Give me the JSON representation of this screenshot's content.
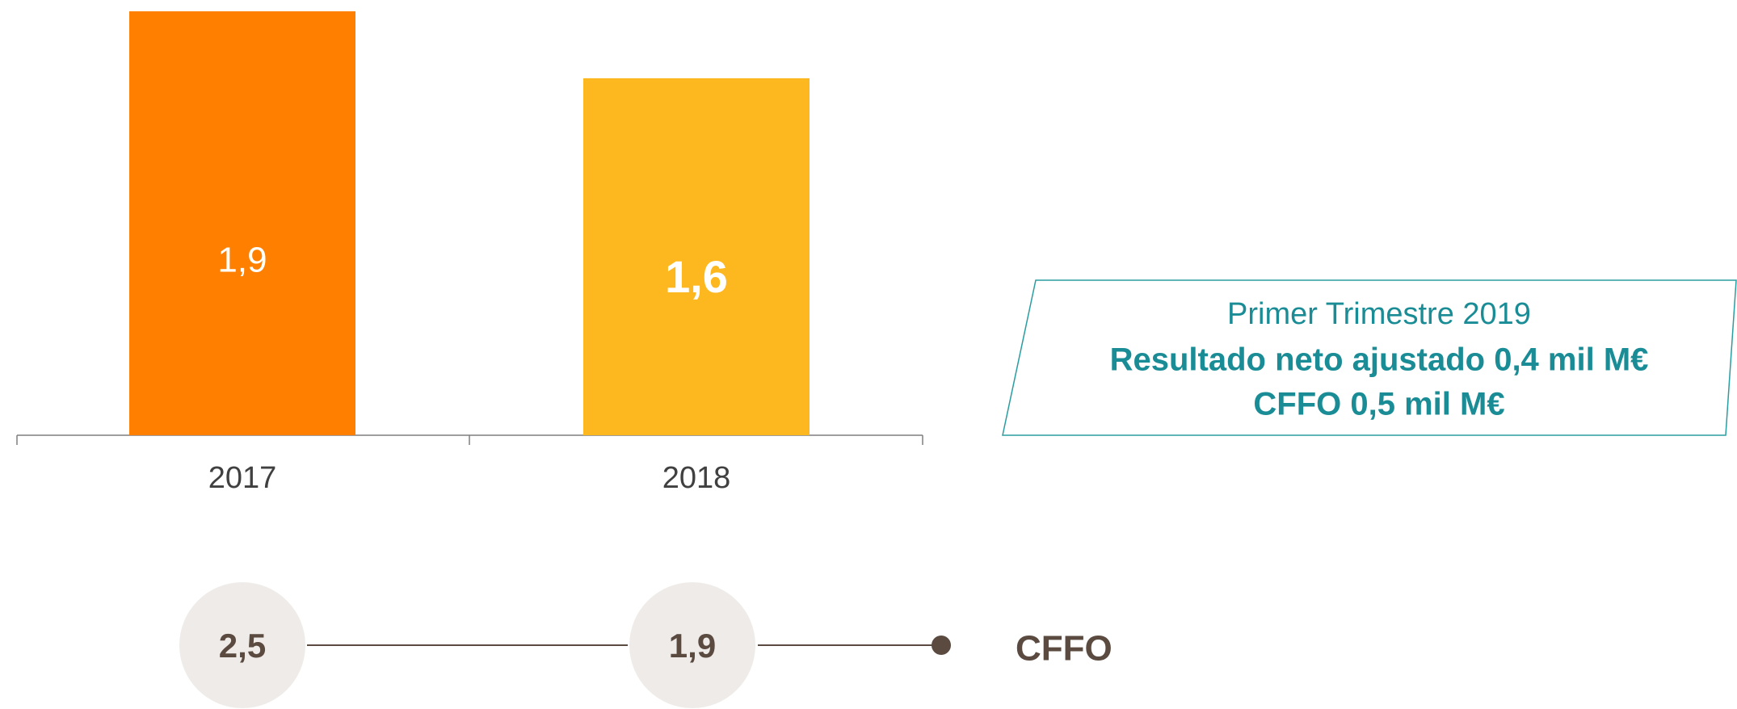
{
  "chart_data": {
    "type": "bar",
    "categories": [
      "2017",
      "2018"
    ],
    "values": [
      1.9,
      1.6
    ],
    "value_labels": [
      "1,9",
      "1,6"
    ],
    "colors": [
      "#ff8000",
      "#fdb71f"
    ],
    "ylim": [
      0,
      1.9
    ],
    "cffo": {
      "name": "CFFO",
      "values": [
        2.5,
        1.9
      ],
      "value_labels": [
        "2,5",
        "1,9"
      ]
    },
    "annotation": [
      "Primer Trimestre 2019",
      "Resultado neto ajustado 0,4 mil M€",
      "CFFO 0,5 mil M€"
    ]
  }
}
